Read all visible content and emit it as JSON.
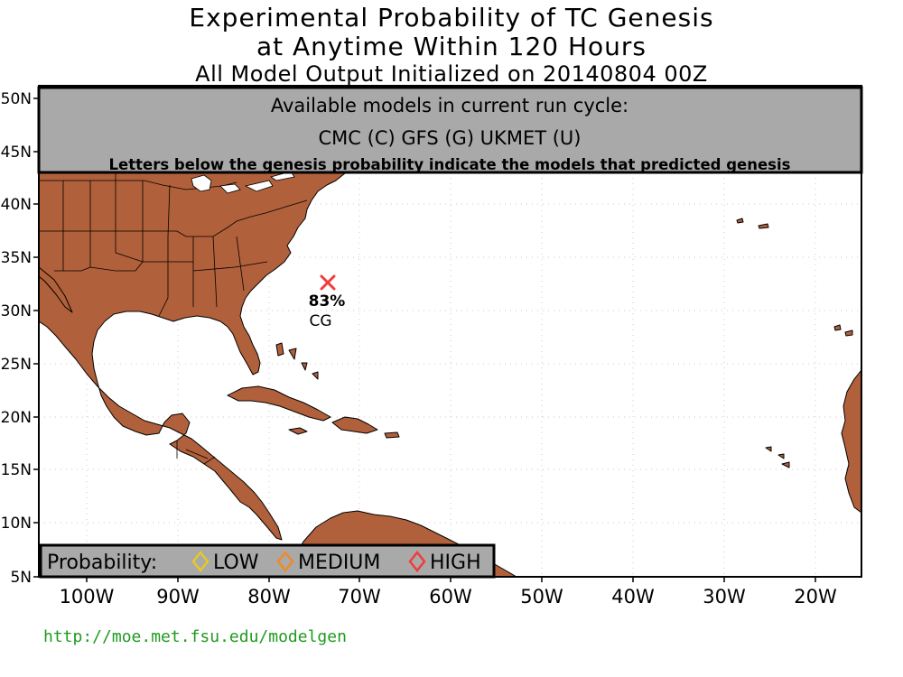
{
  "title": {
    "line1": "Experimental Probability of TC Genesis",
    "line2": "at Anytime Within 120 Hours",
    "line3": "All Model Output Initialized on 20140804 00Z"
  },
  "models_box": {
    "heading": "Available models in current run cycle:",
    "models": "CMC (C) GFS (G)  UKMET (U)",
    "note": "Letters below the genesis probability indicate the models that predicted genesis"
  },
  "axes": {
    "lat_labels": [
      "5N",
      "10N",
      "15N",
      "20N",
      "25N",
      "30N",
      "35N",
      "40N",
      "45N",
      "50N"
    ],
    "lon_labels": [
      "100W",
      "90W",
      "80W",
      "70W",
      "60W",
      "50W",
      "40W",
      "30W",
      "20W"
    ]
  },
  "legend": {
    "prefix": "Probability:",
    "items": [
      {
        "label": "LOW",
        "color": "#e6c828"
      },
      {
        "label": "MEDIUM",
        "color": "#f08a28"
      },
      {
        "label": "HIGH",
        "color": "#f03c3c"
      }
    ]
  },
  "genesis_points": [
    {
      "lon": -73.5,
      "lat": 32.8,
      "probability": "83%",
      "models": "CG",
      "level": "HIGH"
    }
  ],
  "colors": {
    "land": "#b0603a",
    "land_border": "#000000",
    "box_fill": "#a9a9a9",
    "marker": "#f03c3c",
    "url": "#1f9a1f"
  },
  "url": "http://moe.met.fsu.edu/modelgen"
}
